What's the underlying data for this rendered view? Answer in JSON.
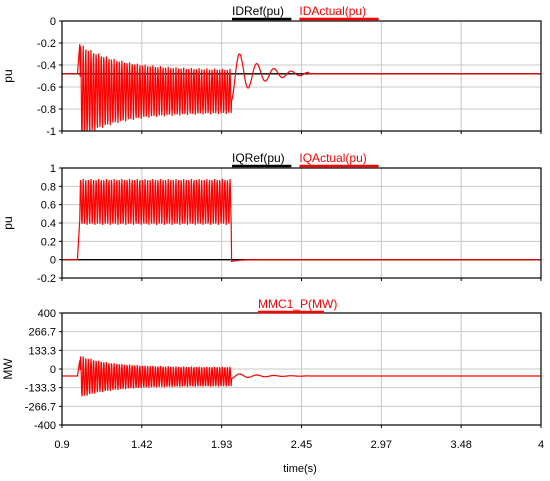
{
  "colors": {
    "ref": "#000000",
    "actual": "#ff0000",
    "grid": "#c8c8c8",
    "frame": "#000000"
  },
  "chart_data": {
    "type": "line",
    "xlabel": "time(s)",
    "xlim": [
      0.9,
      4
    ],
    "xticks": [
      "0.9",
      "1.42",
      "1.93",
      "2.45",
      "2.97",
      "3.48",
      "4"
    ],
    "grid": true,
    "legend": "top-center",
    "panels": [
      {
        "ylabel": "pu",
        "ylim": [
          -1,
          0
        ],
        "yticks": [
          "0",
          "-0.2",
          "-0.4",
          "-0.6",
          "-0.8",
          "-1"
        ],
        "legend_entries": [
          "IDRef(pu)",
          "IDActual(pu)"
        ],
        "series": [
          {
            "name": "IDRef(pu)",
            "x": [
              0.9,
              4
            ],
            "y": [
              -0.48,
              -0.48
            ]
          },
          {
            "name": "IDActual(pu)",
            "x": [
              0.9,
              1.0,
              1.02,
              1.1,
              1.3,
              1.6,
              1.99,
              2.0,
              2.02,
              2.1,
              2.3,
              2.5,
              4.0
            ],
            "y": [
              -0.48,
              -0.48,
              -0.12,
              -0.3,
              -0.4,
              -0.44,
              -0.45,
              -0.84,
              -0.15,
              -0.6,
              -0.45,
              -0.48,
              -0.48
            ]
          }
        ]
      },
      {
        "ylabel": "pu",
        "ylim": [
          -0.2,
          1
        ],
        "yticks": [
          "1",
          "0.8",
          "0.6",
          "0.4",
          "0.2",
          "0",
          "-0.2"
        ],
        "legend_entries": [
          "IQRef(pu)",
          "IQActual(pu)"
        ],
        "series": [
          {
            "name": "IQRef(pu)",
            "x": [
              0.9,
              4
            ],
            "y": [
              0.0,
              0.0
            ]
          },
          {
            "name": "IQActual(pu)",
            "x": [
              0.9,
              1.0,
              1.03,
              1.99,
              2.02,
              2.05,
              4.0
            ],
            "y": [
              0.0,
              0.0,
              0.88,
              0.38,
              -0.03,
              0.0,
              0.0
            ]
          }
        ]
      },
      {
        "ylabel": "MW",
        "ylim": [
          -400,
          400
        ],
        "yticks": [
          "400",
          "266.7",
          "133.3",
          "0",
          "-133.3",
          "-266.7",
          "-400"
        ],
        "legend_entries": [
          "MMC1_P(MW)"
        ],
        "series": [
          {
            "name": "MMC1_P(MW)",
            "x": [
              0.9,
              1.0,
              1.02,
              1.04,
              1.3,
              1.99,
              2.02,
              2.1,
              4.0
            ],
            "y": [
              -50,
              -50,
              100,
              -300,
              -120,
              -110,
              -60,
              -40,
              -50
            ]
          }
        ]
      }
    ]
  }
}
